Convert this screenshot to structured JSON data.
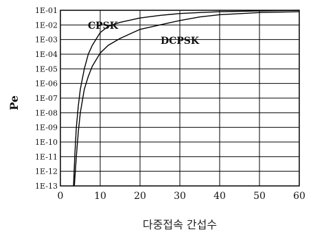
{
  "chart_data": {
    "type": "line",
    "xlabel": "다중접속 간섭수",
    "ylabel": "Pe",
    "xlim": [
      0,
      60
    ],
    "ylim_log10": [
      -13,
      -1
    ],
    "y_scale": "log",
    "grid": true,
    "x_ticks": [
      "0",
      "10",
      "20",
      "30",
      "40",
      "50",
      "60"
    ],
    "y_ticks": [
      "1E-13",
      "1E-12",
      "1E-11",
      "1E-10",
      "1E-09",
      "1E-08",
      "1E-07",
      "1E-06",
      "1E-05",
      "1E-04",
      "1E-03",
      "1E-02",
      "1E-01"
    ],
    "series": [
      {
        "name": "CPSK",
        "x": [
          3.3,
          3.6,
          4,
          4.5,
          5,
          6,
          7,
          8,
          10,
          12,
          15,
          20,
          25,
          30,
          35,
          40,
          50,
          60
        ],
        "y": [
          1e-13,
          1e-11,
          1e-09,
          3e-08,
          4e-07,
          1e-05,
          0.0001,
          0.0004,
          0.003,
          0.008,
          0.015,
          0.03,
          0.045,
          0.06,
          0.07,
          0.08,
          0.09,
          0.1
        ]
      },
      {
        "name": "DCPSK",
        "x": [
          3.5,
          4,
          4.5,
          5,
          6,
          7,
          8,
          10,
          12,
          15,
          20,
          25,
          30,
          35,
          40,
          50,
          60
        ],
        "y": [
          1e-13,
          1e-11,
          5e-10,
          1e-08,
          4e-07,
          3e-06,
          1.5e-05,
          0.00012,
          0.0004,
          0.0012,
          0.005,
          0.01,
          0.02,
          0.035,
          0.05,
          0.07,
          0.08
        ]
      }
    ]
  }
}
